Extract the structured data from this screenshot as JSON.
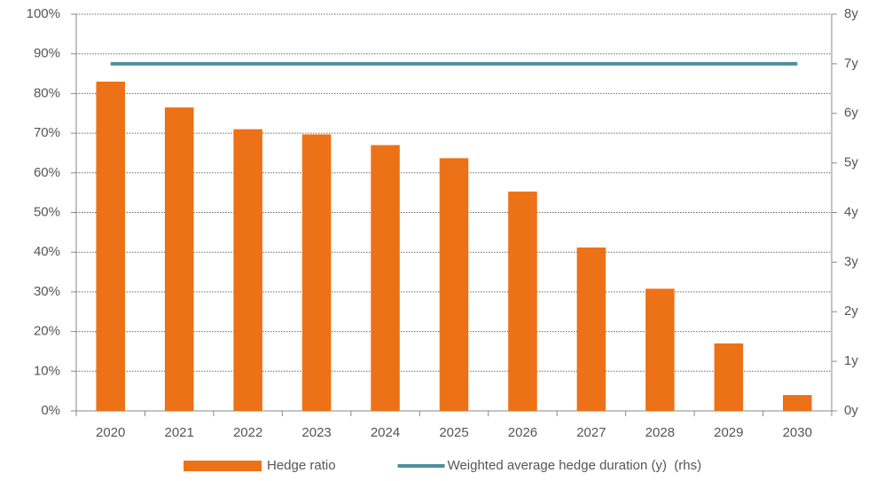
{
  "chart_data": {
    "type": "bar",
    "categories": [
      "2020",
      "2021",
      "2022",
      "2023",
      "2024",
      "2025",
      "2026",
      "2027",
      "2028",
      "2029",
      "2030"
    ],
    "series": [
      {
        "name": "Hedge ratio",
        "color": "#ed7117",
        "values": [
          83,
          76.5,
          71,
          69.7,
          67,
          63.7,
          55.3,
          41.2,
          30.8,
          17,
          4
        ]
      },
      {
        "name": "Weighted average hedge duration (y)  (rhs)",
        "color": "#4e8fa0",
        "type": "line",
        "axis": "y2",
        "values": [
          7,
          7,
          7,
          7,
          7,
          7,
          7,
          7,
          7,
          7,
          7
        ]
      }
    ],
    "ylim": [
      0,
      100
    ],
    "yticks": [
      {
        "value": 0,
        "label": "0%"
      },
      {
        "value": 10,
        "label": "10%"
      },
      {
        "value": 20,
        "label": "20%"
      },
      {
        "value": 30,
        "label": "30%"
      },
      {
        "value": 40,
        "label": "40%"
      },
      {
        "value": 50,
        "label": "50%"
      },
      {
        "value": 60,
        "label": "60%"
      },
      {
        "value": 70,
        "label": "70%"
      },
      {
        "value": 80,
        "label": "80%"
      },
      {
        "value": 90,
        "label": "90%"
      },
      {
        "value": 100,
        "label": "100%"
      }
    ],
    "y2lim": [
      0,
      8
    ],
    "y2ticks": [
      {
        "value": 0,
        "label": "0y"
      },
      {
        "value": 1,
        "label": "1y"
      },
      {
        "value": 2,
        "label": "2y"
      },
      {
        "value": 3,
        "label": "3y"
      },
      {
        "value": 4,
        "label": "4y"
      },
      {
        "value": 5,
        "label": "5y"
      },
      {
        "value": 6,
        "label": "6y"
      },
      {
        "value": 7,
        "label": "7y"
      },
      {
        "value": 8,
        "label": "8y"
      }
    ],
    "grid": true,
    "legend": "bottom"
  }
}
